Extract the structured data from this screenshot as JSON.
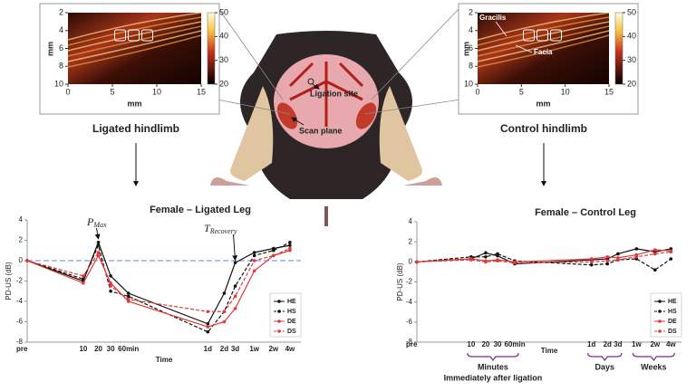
{
  "figure": {
    "left_label": "Ligated  hindlimb",
    "right_label": "Control hindlimb",
    "ligation_label": "Ligation site",
    "scan_label": "Scan plane"
  },
  "ultrasound": [
    {
      "xlabel": "mm",
      "ylabel": "mm",
      "xlim": [
        0,
        15
      ],
      "xticks": [
        0,
        5,
        10,
        15
      ],
      "ylim": [
        2,
        10
      ],
      "yticks": [
        2,
        4,
        6,
        8,
        10
      ],
      "y_reversed": true,
      "clim": [
        20,
        50
      ],
      "cticks": [
        20,
        30,
        40,
        50
      ],
      "annotations": []
    },
    {
      "xlabel": "mm",
      "ylabel": "mm",
      "xlim": [
        0,
        15
      ],
      "xticks": [
        0,
        5,
        10,
        15
      ],
      "ylim": [
        2,
        10
      ],
      "yticks": [
        2,
        4,
        6,
        8,
        10
      ],
      "y_reversed": true,
      "clim": [
        20,
        50
      ],
      "cticks": [
        20,
        30,
        40,
        50
      ],
      "annotations": [
        "Gracilis",
        "Facia"
      ]
    }
  ],
  "chart_data": [
    {
      "type": "line",
      "title": "Female – Ligated Leg",
      "xlabel": "Time",
      "ylabel": "PD-US (dB)",
      "categories": [
        "pre",
        "10",
        "20",
        "30",
        "60min",
        "1d",
        "2d",
        "3d",
        "1w",
        "2w",
        "4w"
      ],
      "ylim": [
        -8,
        4
      ],
      "yticks": [
        -8,
        -6,
        -4,
        -2,
        0,
        2,
        4
      ],
      "hline": 0,
      "hline_color": "#5b8bd0",
      "legend": "lower right",
      "annotations": [
        {
          "symbol": "P",
          "subscript": "Max"
        },
        {
          "symbol": "T",
          "subscript": "Recovery"
        }
      ],
      "series": [
        {
          "name": "HE",
          "color": "#111111",
          "dash": false,
          "values": [
            0,
            -2,
            1.8,
            -1.5,
            -3.2,
            -6.2,
            -3.2,
            -0.2,
            0.8,
            1.2,
            1.5
          ]
        },
        {
          "name": "HS",
          "color": "#111111",
          "dash": true,
          "values": [
            0,
            -1.8,
            1.5,
            -3,
            -3.5,
            -7,
            -5,
            -2.5,
            0.5,
            1,
            1.8
          ]
        },
        {
          "name": "DE",
          "color": "#e03a3a",
          "dash": false,
          "values": [
            0,
            -2.2,
            0.5,
            -2.2,
            -4,
            -6.5,
            -6,
            -4.7,
            -1,
            0.5,
            1
          ]
        },
        {
          "name": "DS",
          "color": "#e03a3a",
          "dash": true,
          "values": [
            0,
            -1.5,
            0.8,
            -2.5,
            -3.8,
            -5,
            -5,
            -3.5,
            0,
            0.5,
            1.2
          ]
        }
      ]
    },
    {
      "type": "line",
      "title": "Female – Control Leg",
      "xlabel": "Time",
      "ylabel": "PD-US (dB)",
      "categories": [
        "pre",
        "10",
        "20",
        "30",
        "60min",
        "1d",
        "2d",
        "3d",
        "1w",
        "2w",
        "4w"
      ],
      "ylim": [
        -8,
        4
      ],
      "yticks": [
        -8,
        -6,
        -4,
        -2,
        0,
        2,
        4
      ],
      "legend": "lower right",
      "group_labels": [
        "Minutes",
        "Days",
        "Weeks"
      ],
      "note": "Immediately after ligation",
      "series": [
        {
          "name": "HE",
          "color": "#111111",
          "dash": false,
          "values": [
            0,
            0.3,
            0.9,
            0.6,
            -0.2,
            0.2,
            0.3,
            0.8,
            1.3,
            1,
            1.3
          ]
        },
        {
          "name": "HS",
          "color": "#111111",
          "dash": true,
          "values": [
            0,
            0.5,
            0.5,
            0.8,
            0.1,
            -0.3,
            -0.2,
            0.2,
            0.3,
            -0.8,
            0.3
          ]
        },
        {
          "name": "DE",
          "color": "#e03a3a",
          "dash": false,
          "values": [
            0,
            0.3,
            0.1,
            0.2,
            0,
            0.3,
            0.5,
            0.4,
            0.7,
            1.2,
            1.1
          ]
        },
        {
          "name": "DS",
          "color": "#e03a3a",
          "dash": true,
          "values": [
            0,
            0.2,
            0,
            0.1,
            -0.1,
            0,
            0.1,
            0.2,
            0.5,
            0.8,
            1
          ]
        }
      ]
    }
  ]
}
